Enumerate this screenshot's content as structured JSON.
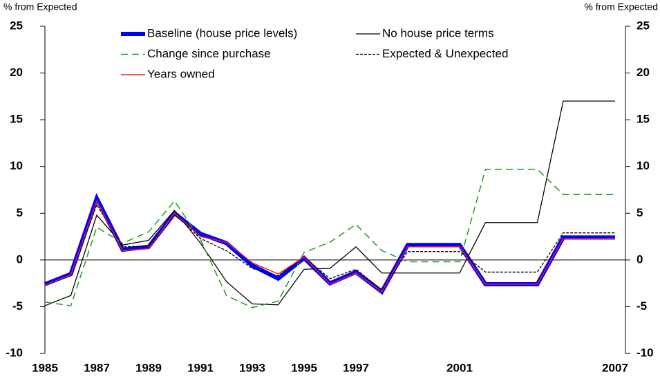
{
  "chart_data": {
    "type": "line",
    "y_label": "% from Expected",
    "y2_label": "% from Expected",
    "x": [
      1985,
      1986,
      1987,
      1988,
      1989,
      1990,
      1991,
      1992,
      1993,
      1994,
      1995,
      1996,
      1997,
      1998,
      1999,
      2000,
      2001,
      2002,
      2003,
      2004,
      2005,
      2006,
      2007
    ],
    "xlim": [
      1985,
      2007.4
    ],
    "xticks": [
      1985,
      1987,
      1989,
      1991,
      1993,
      1995,
      1997,
      2001,
      2007
    ],
    "ylim": [
      -10,
      25
    ],
    "yticks": [
      -10,
      -5,
      0,
      5,
      10,
      15,
      20,
      25
    ],
    "y2lim": [
      -10,
      25
    ],
    "y2ticks": [
      -10,
      -5,
      0,
      5,
      10,
      15,
      20,
      25
    ],
    "grid": false,
    "legend_position": "top",
    "series": [
      {
        "name": "Baseline (house price levels)",
        "color": "#0000ff",
        "width": 6,
        "dash": "none",
        "values": [
          -2.6,
          -1.5,
          6.6,
          1.1,
          1.4,
          5.0,
          2.8,
          1.8,
          -0.6,
          -2.0,
          0.2,
          -2.5,
          -1.3,
          -3.4,
          1.6,
          1.6,
          1.6,
          -2.6,
          -2.6,
          -2.6,
          2.4,
          2.4,
          2.4
        ]
      },
      {
        "name": "No house price terms",
        "color": "#000000",
        "width": 1.3,
        "dash": "none",
        "values": [
          -4.9,
          -3.8,
          4.8,
          1.6,
          2.1,
          5.3,
          1.8,
          -2.3,
          -4.7,
          -4.8,
          -1.0,
          -0.9,
          1.4,
          -1.4,
          -1.4,
          -1.4,
          -1.4,
          4.0,
          4.0,
          4.0,
          17.0,
          17.0,
          17.0
        ]
      },
      {
        "name": "Change since purchase",
        "color": "#229922",
        "width": 1.5,
        "dash": "10 6",
        "values": [
          -4.5,
          -4.9,
          3.5,
          1.8,
          3.0,
          6.3,
          2.2,
          -3.8,
          -5.1,
          -4.4,
          0.8,
          1.9,
          3.8,
          1.0,
          -0.2,
          -0.2,
          -0.2,
          9.7,
          9.7,
          9.7,
          7.0,
          7.0,
          7.0
        ]
      },
      {
        "name": "Expected & Unexpected",
        "color": "#000000",
        "width": 1.3,
        "dash": "4 2",
        "values": [
          -2.6,
          -1.7,
          5.9,
          1.4,
          1.5,
          4.9,
          2.3,
          1.0,
          -0.9,
          -1.7,
          0.3,
          -2.0,
          -1.0,
          -3.2,
          0.9,
          0.9,
          0.9,
          -1.3,
          -1.3,
          -1.3,
          2.9,
          2.9,
          2.9
        ]
      },
      {
        "name": "Years owned",
        "color": "#ee1c1c",
        "width": 1.5,
        "dash": "none",
        "values": [
          -2.7,
          -1.6,
          6.3,
          1.0,
          1.2,
          5.0,
          2.5,
          1.9,
          -0.3,
          -1.5,
          0.3,
          -2.6,
          -1.4,
          -3.4,
          1.4,
          1.4,
          1.4,
          -2.6,
          -2.6,
          -2.6,
          2.3,
          2.3,
          2.3
        ]
      }
    ]
  }
}
